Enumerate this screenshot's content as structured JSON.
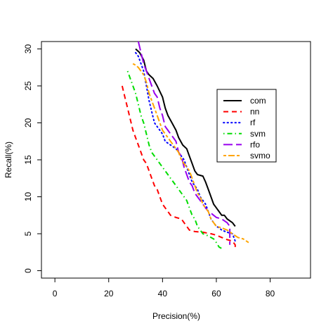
{
  "chart_data": {
    "type": "line",
    "title": "",
    "xlabel": "Precision(%)",
    "ylabel": "Recall(%)",
    "xlim": [
      -5,
      95
    ],
    "ylim": [
      -1,
      31
    ],
    "xticks": [
      "0",
      "20",
      "40",
      "60",
      "80"
    ],
    "yticks": [
      "0",
      "5",
      "10",
      "15",
      "20",
      "25",
      "30"
    ],
    "legend_position": "right",
    "series": [
      {
        "name": "com",
        "color": "#000000",
        "dash": "solid",
        "points": [
          [
            30,
            30
          ],
          [
            31.5,
            29.5
          ],
          [
            33,
            28.5
          ],
          [
            34,
            27
          ],
          [
            35,
            26.5
          ],
          [
            36.5,
            26
          ],
          [
            38,
            25
          ],
          [
            40,
            23.5
          ],
          [
            41,
            22
          ],
          [
            42,
            21
          ],
          [
            43.5,
            20
          ],
          [
            45,
            19
          ],
          [
            46,
            18
          ],
          [
            47.5,
            17
          ],
          [
            49,
            16.5
          ],
          [
            50,
            15.5
          ],
          [
            51,
            14.5
          ],
          [
            52,
            13.5
          ],
          [
            53,
            13
          ],
          [
            55,
            12.8
          ],
          [
            56,
            12
          ],
          [
            57,
            11
          ],
          [
            58,
            10
          ],
          [
            59,
            9
          ],
          [
            60,
            8.5
          ],
          [
            61,
            8
          ],
          [
            62,
            7.5
          ],
          [
            63,
            7.5
          ],
          [
            64,
            7
          ],
          [
            66,
            6.5
          ],
          [
            67,
            6
          ]
        ]
      },
      {
        "name": "nn",
        "color": "#ff0000",
        "dash": "dashed",
        "points": [
          [
            25,
            25
          ],
          [
            26,
            23.5
          ],
          [
            27,
            22
          ],
          [
            28,
            20.5
          ],
          [
            29,
            19
          ],
          [
            30,
            18
          ],
          [
            31,
            17
          ],
          [
            32,
            16
          ],
          [
            33,
            15
          ],
          [
            34,
            14.5
          ],
          [
            35,
            13.5
          ],
          [
            36,
            12.5
          ],
          [
            37,
            11.5
          ],
          [
            38,
            11
          ],
          [
            39,
            10
          ],
          [
            40,
            9
          ],
          [
            41,
            8.5
          ],
          [
            42,
            8
          ],
          [
            43,
            7.5
          ],
          [
            45,
            7.2
          ],
          [
            47,
            7
          ],
          [
            48,
            6.5
          ],
          [
            49,
            6
          ],
          [
            50,
            5.5
          ],
          [
            52,
            5.3
          ],
          [
            55,
            5.2
          ],
          [
            58,
            5
          ],
          [
            60,
            4.8
          ],
          [
            62,
            4.5
          ],
          [
            64,
            4.2
          ],
          [
            66,
            4
          ],
          [
            67,
            3.5
          ],
          [
            67,
            3
          ]
        ]
      },
      {
        "name": "rf",
        "color": "#0000ff",
        "dash": "dotted",
        "points": [
          [
            30,
            29.5
          ],
          [
            31,
            29
          ],
          [
            32,
            28
          ],
          [
            33,
            27
          ],
          [
            34,
            25
          ],
          [
            35,
            23
          ],
          [
            36,
            21.5
          ],
          [
            37,
            20
          ],
          [
            38,
            19.5
          ],
          [
            39,
            19
          ],
          [
            40,
            18.5
          ],
          [
            41,
            17.5
          ],
          [
            43,
            17
          ],
          [
            45,
            16.5
          ],
          [
            46,
            16
          ],
          [
            47,
            15.5
          ],
          [
            48,
            15
          ],
          [
            49,
            14
          ],
          [
            50,
            13
          ],
          [
            51,
            12
          ],
          [
            52,
            11.5
          ],
          [
            53,
            11
          ],
          [
            54,
            10
          ],
          [
            55,
            9.5
          ],
          [
            56,
            9
          ],
          [
            57,
            8
          ],
          [
            58,
            7
          ],
          [
            59,
            6.5
          ],
          [
            60,
            6
          ],
          [
            61,
            5.8
          ],
          [
            62,
            5.5
          ],
          [
            64,
            5.2
          ],
          [
            66,
            5
          ],
          [
            67,
            4
          ]
        ]
      },
      {
        "name": "svm",
        "color": "#00dd00",
        "dash": "dashdot",
        "points": [
          [
            27,
            27
          ],
          [
            28,
            26
          ],
          [
            29,
            25
          ],
          [
            30,
            24
          ],
          [
            31,
            22.5
          ],
          [
            32,
            21
          ],
          [
            33,
            20
          ],
          [
            34,
            18.5
          ],
          [
            35,
            17
          ],
          [
            36,
            16
          ],
          [
            37,
            15.5
          ],
          [
            38,
            15
          ],
          [
            39,
            14.5
          ],
          [
            40,
            14
          ],
          [
            41,
            13.5
          ],
          [
            42,
            13
          ],
          [
            43,
            12.5
          ],
          [
            44,
            12
          ],
          [
            45,
            11.5
          ],
          [
            46,
            11
          ],
          [
            47,
            10.5
          ],
          [
            48,
            10
          ],
          [
            49,
            9.5
          ],
          [
            50,
            8.5
          ],
          [
            51,
            7.5
          ],
          [
            52,
            7
          ],
          [
            53,
            6
          ],
          [
            54,
            5.5
          ],
          [
            55,
            5
          ],
          [
            57,
            4.7
          ],
          [
            59,
            4.3
          ],
          [
            60,
            3.8
          ],
          [
            61,
            3.2
          ],
          [
            62,
            3
          ]
        ]
      },
      {
        "name": "rfo",
        "color": "#9900ee",
        "dash": "longdash",
        "points": [
          [
            31,
            31
          ],
          [
            32,
            29.5
          ],
          [
            33,
            28
          ],
          [
            34,
            27
          ],
          [
            35,
            26
          ],
          [
            36,
            25
          ],
          [
            37,
            24
          ],
          [
            38,
            23.5
          ],
          [
            39,
            22
          ],
          [
            40,
            21
          ],
          [
            41,
            19.5
          ],
          [
            42,
            19
          ],
          [
            43,
            18.5
          ],
          [
            44,
            18
          ],
          [
            45,
            17.5
          ],
          [
            46,
            16
          ],
          [
            47,
            15.5
          ],
          [
            48,
            14
          ],
          [
            49,
            13
          ],
          [
            50,
            12
          ],
          [
            51,
            11.5
          ],
          [
            52,
            10.5
          ],
          [
            53,
            10
          ],
          [
            54,
            9.5
          ],
          [
            55,
            9
          ],
          [
            56,
            8.5
          ],
          [
            57,
            8
          ],
          [
            58,
            7.8
          ],
          [
            59,
            7.5
          ],
          [
            60,
            7.2
          ],
          [
            62,
            7
          ],
          [
            64,
            6.5
          ],
          [
            65,
            6
          ],
          [
            65,
            3.5
          ]
        ]
      },
      {
        "name": "svmo",
        "color": "#ffa500",
        "dash": "twodash",
        "points": [
          [
            29,
            28
          ],
          [
            30,
            27.8
          ],
          [
            31,
            27.5
          ],
          [
            32,
            27
          ],
          [
            33,
            26.5
          ],
          [
            34,
            25.5
          ],
          [
            35,
            24
          ],
          [
            36,
            23
          ],
          [
            37,
            22
          ],
          [
            38,
            21
          ],
          [
            39,
            20
          ],
          [
            40,
            19
          ],
          [
            41,
            18.5
          ],
          [
            42,
            18
          ],
          [
            43,
            17.5
          ],
          [
            44,
            17
          ],
          [
            45,
            16.5
          ],
          [
            46,
            16
          ],
          [
            47,
            15
          ],
          [
            48,
            14.5
          ],
          [
            49,
            14
          ],
          [
            50,
            13.5
          ],
          [
            51,
            12.5
          ],
          [
            52,
            11.5
          ],
          [
            53,
            10.5
          ],
          [
            54,
            10
          ],
          [
            55,
            9
          ],
          [
            56,
            8.5
          ],
          [
            57,
            8
          ],
          [
            58,
            7
          ],
          [
            59,
            6.5
          ],
          [
            60,
            6
          ],
          [
            62,
            5.8
          ],
          [
            64,
            5.5
          ],
          [
            66,
            5
          ],
          [
            68,
            4.5
          ],
          [
            70,
            4.3
          ],
          [
            72,
            3.8
          ]
        ]
      }
    ]
  }
}
